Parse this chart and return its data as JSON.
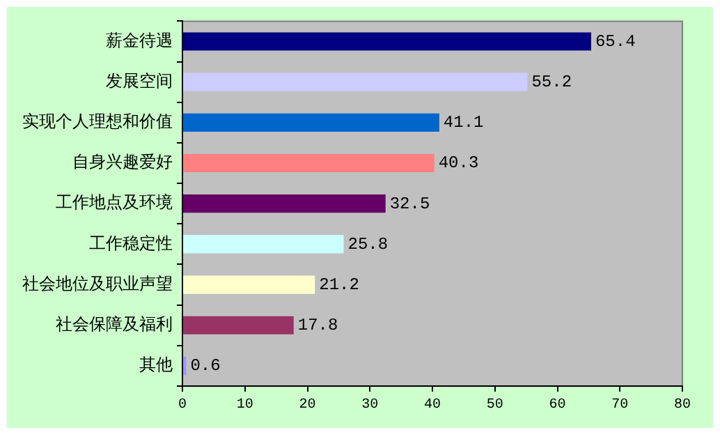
{
  "chart_data": {
    "type": "bar",
    "orientation": "horizontal",
    "categories": [
      "薪金待遇",
      "发展空间",
      "实现个人理想和价值",
      "自身兴趣爱好",
      "工作地点及环境",
      "工作稳定性",
      "社会地位及职业声望",
      "社会保障及福利",
      "其他"
    ],
    "values": [
      65.4,
      55.2,
      41.1,
      40.3,
      32.5,
      25.8,
      21.2,
      17.8,
      0.6
    ],
    "colors": [
      "#000080",
      "#ccccff",
      "#0066cc",
      "#ff8080",
      "#660066",
      "#ccffff",
      "#ffffcc",
      "#993366",
      "#9999ff"
    ],
    "xlim": [
      0,
      80
    ],
    "xticks": [
      0,
      10,
      20,
      30,
      40,
      50,
      60,
      70,
      80
    ],
    "data_labels": true,
    "grid": false,
    "legend": false
  }
}
